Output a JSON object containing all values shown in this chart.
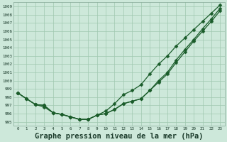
{
  "background_color": "#cde8da",
  "grid_color": "#a0c8b0",
  "line_color": "#1a5c2a",
  "marker": "D",
  "marker_size": 2.5,
  "linewidth": 0.9,
  "xlabel": "Graphe pression niveau de la mer (hPa)",
  "xlabel_fontsize": 7.5,
  "ylim": [
    994.5,
    1009.5
  ],
  "xlim": [
    -0.5,
    23.5
  ],
  "yticks": [
    995,
    996,
    997,
    998,
    999,
    1000,
    1001,
    1002,
    1003,
    1004,
    1005,
    1006,
    1007,
    1008,
    1009
  ],
  "xticks": [
    0,
    1,
    2,
    3,
    4,
    5,
    6,
    7,
    8,
    9,
    10,
    11,
    12,
    13,
    14,
    15,
    16,
    17,
    18,
    19,
    20,
    21,
    22,
    23
  ],
  "series1": [
    998.5,
    997.8,
    997.1,
    997.0,
    996.1,
    995.9,
    995.6,
    995.3,
    995.3,
    995.8,
    996.3,
    997.2,
    998.3,
    998.8,
    999.5,
    1000.8,
    1002.0,
    1003.0,
    1004.2,
    1005.2,
    1006.2,
    1007.2,
    1008.2,
    1009.2
  ],
  "series2": [
    998.5,
    997.8,
    997.1,
    997.0,
    996.1,
    995.9,
    995.6,
    995.3,
    995.3,
    995.8,
    996.0,
    996.5,
    997.2,
    997.5,
    997.8,
    998.8,
    1000.0,
    1001.0,
    1002.5,
    1003.8,
    1005.0,
    1006.3,
    1007.5,
    1008.8
  ],
  "series3": [
    998.5,
    997.8,
    997.1,
    996.8,
    996.1,
    995.9,
    995.6,
    995.3,
    995.3,
    995.8,
    996.0,
    996.5,
    997.2,
    997.5,
    997.8,
    998.8,
    999.8,
    1000.8,
    1002.2,
    1003.5,
    1004.8,
    1006.0,
    1007.2,
    1008.5
  ]
}
